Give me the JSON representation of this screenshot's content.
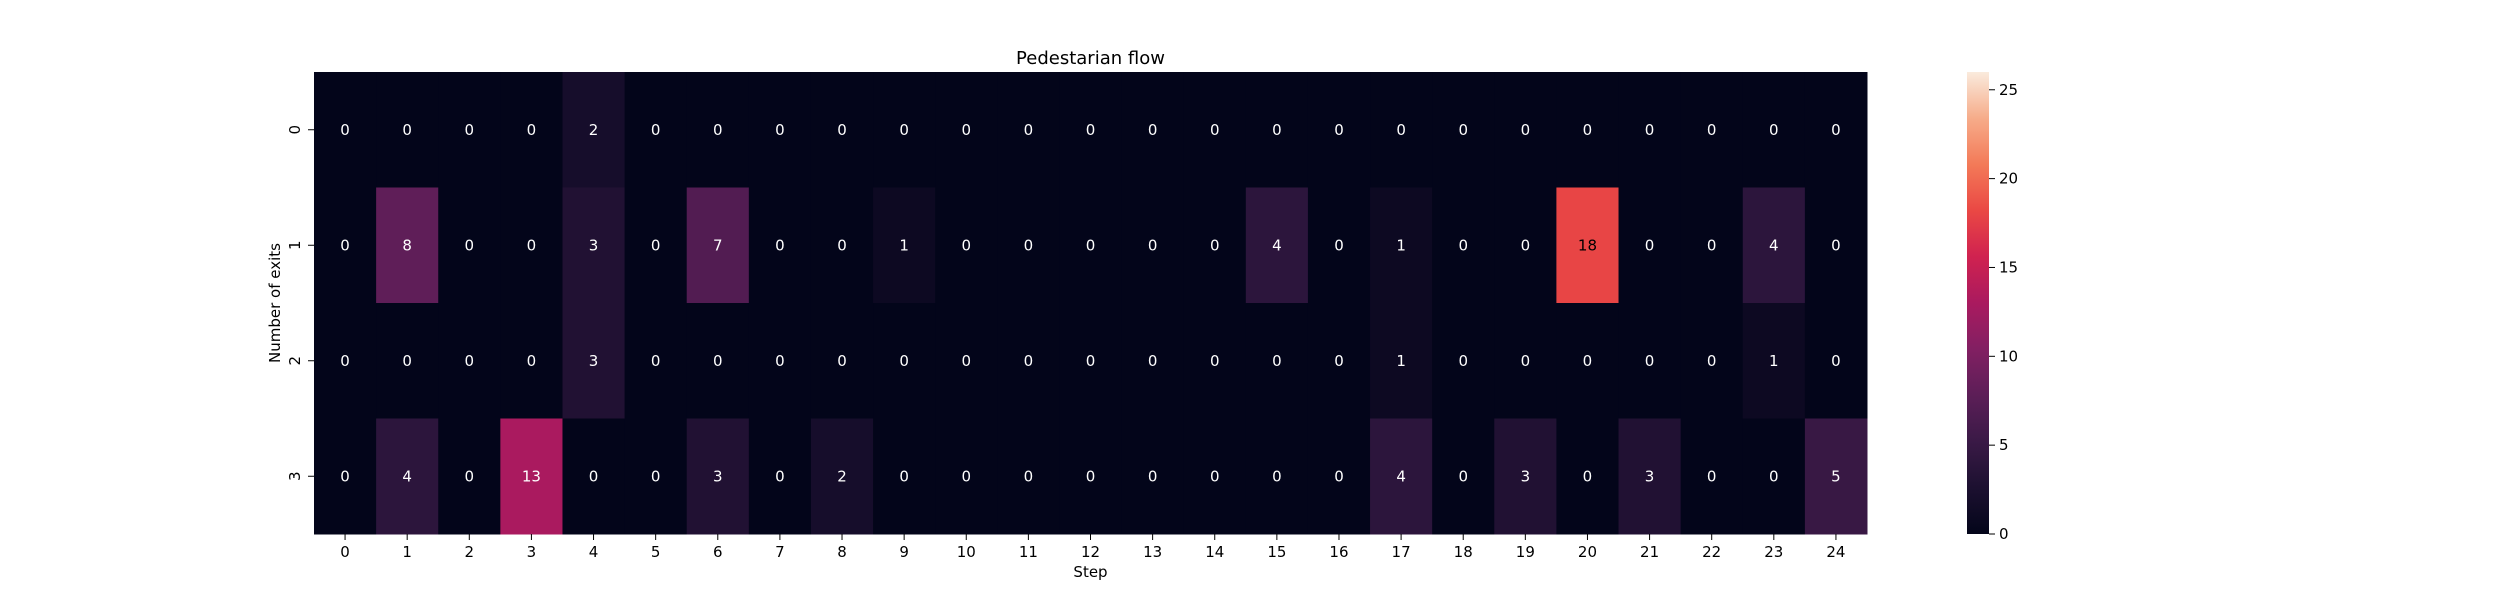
{
  "chart_data": {
    "type": "heatmap",
    "title": "Pedestarian flow",
    "xlabel": "Step",
    "ylabel": "Number of exits",
    "x_categories": [
      "0",
      "1",
      "2",
      "3",
      "4",
      "5",
      "6",
      "7",
      "8",
      "9",
      "10",
      "11",
      "12",
      "13",
      "14",
      "15",
      "16",
      "17",
      "18",
      "19",
      "20",
      "21",
      "22",
      "23",
      "24"
    ],
    "y_categories": [
      "0",
      "1",
      "2",
      "3"
    ],
    "values": [
      [
        0,
        0,
        0,
        0,
        2,
        0,
        0,
        0,
        0,
        0,
        0,
        0,
        0,
        0,
        0,
        0,
        0,
        0,
        0,
        0,
        0,
        0,
        0,
        0,
        0
      ],
      [
        0,
        8,
        0,
        0,
        3,
        0,
        7,
        0,
        0,
        1,
        0,
        0,
        0,
        0,
        0,
        4,
        0,
        1,
        0,
        0,
        18,
        0,
        0,
        4,
        0
      ],
      [
        0,
        0,
        0,
        0,
        3,
        0,
        0,
        0,
        0,
        0,
        0,
        0,
        0,
        0,
        0,
        0,
        0,
        1,
        0,
        0,
        0,
        0,
        0,
        1,
        0
      ],
      [
        0,
        4,
        0,
        13,
        0,
        0,
        3,
        0,
        2,
        0,
        0,
        0,
        0,
        0,
        0,
        0,
        0,
        4,
        0,
        3,
        0,
        3,
        0,
        0,
        5
      ]
    ],
    "colorbar": {
      "min": 0,
      "max": 26,
      "ticks": [
        0,
        5,
        10,
        15,
        20,
        25
      ],
      "colormap": "rocket"
    },
    "annotations": true,
    "grid": false
  }
}
